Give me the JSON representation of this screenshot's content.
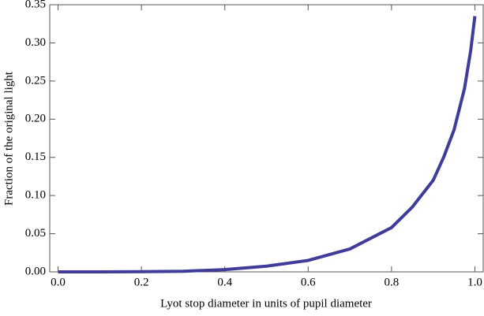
{
  "chart_data": {
    "type": "line",
    "x_label": "Lyot stop diameter in units of pupil diameter",
    "y_label": "Fraction of the original light",
    "x": [
      0,
      0.1,
      0.2,
      0.3,
      0.4,
      0.5,
      0.6,
      0.7,
      0.8,
      0.85,
      0.9,
      0.925,
      0.95,
      0.975,
      0.99,
      1.0
    ],
    "series": [
      {
        "color": "#3f3d99",
        "values": [
          0,
          0,
          0.0002,
          0.0008,
          0.003,
          0.0075,
          0.015,
          0.03,
          0.058,
          0.085,
          0.12,
          0.15,
          0.186,
          0.24,
          0.29,
          0.335
        ]
      }
    ],
    "xlim": [
      -0.02,
      1.02
    ],
    "ylim": [
      0,
      0.35
    ],
    "xticks": [
      {
        "value": 0,
        "label": "0.0"
      },
      {
        "value": 0.2,
        "label": "0.2"
      },
      {
        "value": 0.4,
        "label": "0.4"
      },
      {
        "value": 0.6,
        "label": "0.6"
      },
      {
        "value": 0.8,
        "label": "0.8"
      },
      {
        "value": 1,
        "label": "1.0"
      }
    ],
    "yticks": [
      {
        "value": 0,
        "label": "0.00"
      },
      {
        "value": 0.05,
        "label": "0.05"
      },
      {
        "value": 0.1,
        "label": "0.10"
      },
      {
        "value": 0.15,
        "label": "0.15"
      },
      {
        "value": 0.2,
        "label": "0.20"
      },
      {
        "value": 0.25,
        "label": "0.25"
      },
      {
        "value": 0.3,
        "label": "0.30"
      },
      {
        "value": 0.35,
        "label": "0.35"
      }
    ]
  }
}
